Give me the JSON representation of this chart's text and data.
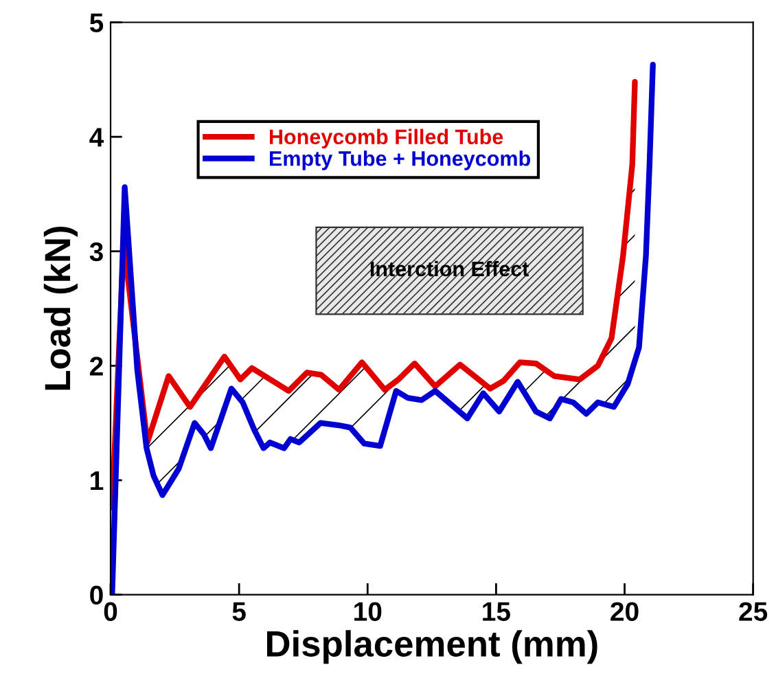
{
  "chart_data": {
    "type": "line",
    "xlabel": "Displacement (mm)",
    "ylabel": "Load (kN)",
    "xlim": [
      0,
      25
    ],
    "ylim": [
      0,
      5
    ],
    "xticks": [
      0,
      5,
      10,
      15,
      20,
      25
    ],
    "yticks": [
      0,
      1,
      2,
      3,
      4,
      5
    ],
    "grid": false,
    "legend": "top left",
    "line_style": "solid",
    "marker": "none",
    "annotations": [
      "Interction Effect"
    ],
    "series": [
      {
        "name": "Honeycomb Filled Tube",
        "color": "#e00000",
        "x": [
          0.06,
          0.51,
          1.43,
          2.26,
          3.09,
          4.43,
          5.05,
          5.5,
          6.93,
          7.64,
          8.2,
          8.89,
          9.78,
          10.67,
          11.2,
          11.83,
          12.63,
          13.6,
          14.77,
          15.3,
          15.93,
          16.55,
          17.26,
          18.25,
          18.96,
          19.49,
          19.94,
          20.3,
          20.4
        ],
        "values": [
          0.76,
          3.08,
          1.33,
          1.91,
          1.64,
          2.08,
          1.88,
          1.98,
          1.78,
          1.94,
          1.92,
          1.79,
          2.03,
          1.79,
          1.88,
          2.02,
          1.82,
          2.01,
          1.8,
          1.87,
          2.03,
          2.02,
          1.91,
          1.88,
          2.0,
          2.24,
          2.96,
          3.76,
          4.48
        ]
      },
      {
        "name": "Empty Tube + Honeycomb",
        "color": "#0000d0",
        "x": [
          0.06,
          0.55,
          1.04,
          1.4,
          1.67,
          2.02,
          2.65,
          3.27,
          3.63,
          3.9,
          4.7,
          5.14,
          5.59,
          5.95,
          6.2,
          6.75,
          7.0,
          7.34,
          8.17,
          8.88,
          9.33,
          9.87,
          10.49,
          11.11,
          11.56,
          12.1,
          12.63,
          13.88,
          14.5,
          15.12,
          15.84,
          16.55,
          17.09,
          17.53,
          18.0,
          18.51,
          18.96,
          19.58,
          20.12,
          20.56,
          20.83,
          20.97,
          21.1
        ],
        "values": [
          0,
          3.56,
          1.96,
          1.28,
          1.04,
          0.87,
          1.1,
          1.5,
          1.4,
          1.28,
          1.8,
          1.68,
          1.44,
          1.28,
          1.33,
          1.28,
          1.36,
          1.33,
          1.5,
          1.48,
          1.46,
          1.32,
          1.3,
          1.78,
          1.72,
          1.7,
          1.78,
          1.54,
          1.76,
          1.6,
          1.86,
          1.6,
          1.54,
          1.71,
          1.68,
          1.58,
          1.68,
          1.64,
          1.84,
          2.16,
          2.96,
          3.76,
          4.63
        ]
      }
    ]
  }
}
